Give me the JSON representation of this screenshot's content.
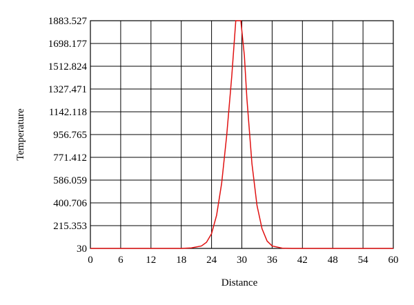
{
  "chart_data": {
    "type": "line",
    "x_label": "Distance",
    "y_label": "Temperature",
    "x": [
      0,
      18,
      20,
      22,
      23,
      24,
      25,
      26,
      27,
      28,
      28.8,
      29.8,
      30.5,
      31,
      32,
      33,
      34,
      35,
      36,
      38,
      40,
      60
    ],
    "series": [
      {
        "color": "#e01010",
        "values": [
          30,
          30,
          34,
          50,
          80,
          150,
          300,
          560,
          950,
          1430,
          1883.527,
          1883.527,
          1600,
          1250,
          720,
          380,
          190,
          90,
          50,
          32,
          30,
          30
        ]
      }
    ],
    "xlim": [
      0,
      60
    ],
    "xticks": [
      0,
      6,
      12,
      18,
      24,
      30,
      36,
      42,
      48,
      54,
      60
    ],
    "ylim": [
      30,
      1883.527
    ],
    "yticks": [
      30,
      215.353,
      400.706,
      586.059,
      771.412,
      956.765,
      1142.118,
      1327.471,
      1512.824,
      1698.177,
      1883.527
    ],
    "grid": true
  }
}
